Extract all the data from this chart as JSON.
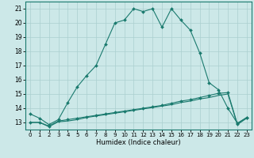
{
  "xlabel": "Humidex (Indice chaleur)",
  "background_color": "#cce8e8",
  "grid_color": "#aacfcf",
  "line_color": "#1a7a6e",
  "x_ticks": [
    0,
    1,
    2,
    3,
    4,
    5,
    6,
    7,
    8,
    9,
    10,
    11,
    12,
    13,
    14,
    15,
    16,
    17,
    18,
    19,
    20,
    21,
    22,
    23
  ],
  "y_ticks": [
    13,
    14,
    15,
    16,
    17,
    18,
    19,
    20,
    21
  ],
  "ylim": [
    12.5,
    21.5
  ],
  "xlim": [
    -0.5,
    23.5
  ],
  "line1_x": [
    0,
    1,
    2,
    3,
    4,
    5,
    6,
    7,
    8,
    9,
    10,
    11,
    12,
    13,
    14,
    15,
    16,
    17,
    18,
    19,
    20,
    21,
    22,
    23
  ],
  "line1_y": [
    13.6,
    13.3,
    12.85,
    13.2,
    14.4,
    15.5,
    16.3,
    17.0,
    18.5,
    20.0,
    20.2,
    21.0,
    20.8,
    21.0,
    19.7,
    21.0,
    20.2,
    19.5,
    17.9,
    15.8,
    15.3,
    14.0,
    12.95,
    13.35
  ],
  "line2_x": [
    0,
    1,
    2,
    3,
    4,
    5,
    6,
    7,
    8,
    9,
    10,
    11,
    12,
    13,
    14,
    15,
    16,
    17,
    18,
    19,
    20,
    21,
    22,
    23
  ],
  "line2_y": [
    13.0,
    13.0,
    12.75,
    13.1,
    13.2,
    13.3,
    13.4,
    13.5,
    13.6,
    13.7,
    13.8,
    13.9,
    14.0,
    14.1,
    14.2,
    14.35,
    14.5,
    14.6,
    14.75,
    14.9,
    15.05,
    15.1,
    12.9,
    13.35
  ],
  "line3_x": [
    0,
    1,
    2,
    3,
    4,
    5,
    6,
    7,
    8,
    9,
    10,
    11,
    12,
    13,
    14,
    15,
    16,
    17,
    18,
    19,
    20,
    21,
    22,
    23
  ],
  "line3_y": [
    13.0,
    13.0,
    12.7,
    13.05,
    13.1,
    13.2,
    13.35,
    13.45,
    13.55,
    13.65,
    13.75,
    13.85,
    13.95,
    14.05,
    14.15,
    14.25,
    14.4,
    14.5,
    14.65,
    14.75,
    14.9,
    15.0,
    12.85,
    13.3
  ]
}
